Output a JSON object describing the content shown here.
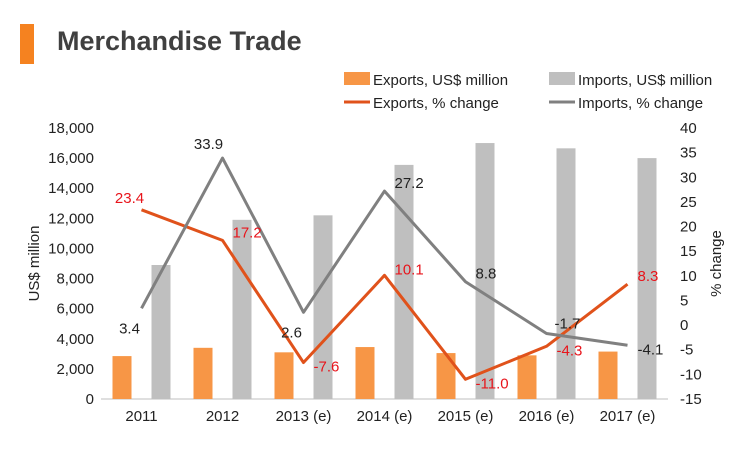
{
  "header": {
    "title": "Merchandise Trade",
    "accent_color": "#F58220"
  },
  "chart_data": {
    "type": "bar",
    "categories": [
      "2011",
      "2012",
      "2013 (e)",
      "2014 (e)",
      "2015 (e)",
      "2016 (e)",
      "2017 (e)"
    ],
    "series": [
      {
        "name": "Exports, US$ million",
        "kind": "bar",
        "axis": "left",
        "color": "#F79646",
        "values": [
          2850,
          3400,
          3100,
          3450,
          3050,
          2900,
          3150
        ]
      },
      {
        "name": "Imports, US$ million",
        "kind": "bar",
        "axis": "left",
        "color": "#BFBFBF",
        "values": [
          8900,
          11900,
          12200,
          15550,
          17000,
          16650,
          16000
        ]
      },
      {
        "name": "Exports, % change",
        "kind": "line",
        "axis": "right",
        "color": "#E0521B",
        "values": [
          23.4,
          17.2,
          -7.6,
          10.1,
          -11.0,
          -4.3,
          8.3
        ],
        "labels": [
          "23.4",
          "17.2",
          "-7.6",
          "10.1",
          "-11.0",
          "-4.3",
          "8.3"
        ],
        "label_color": "#E8141B"
      },
      {
        "name": "Imports, % change",
        "kind": "line",
        "axis": "right",
        "color": "#808080",
        "values": [
          3.4,
          33.9,
          2.6,
          27.2,
          8.8,
          -1.7,
          -4.1
        ],
        "labels": [
          "3.4",
          "33.9",
          "2.6",
          "27.2",
          "8.8",
          "-1.7",
          "-4.1"
        ],
        "label_color": "#222222"
      }
    ],
    "ylabel": "US$ million",
    "y2label": "% change",
    "ylim": [
      0,
      18000
    ],
    "yticks": [
      "0",
      "2,000",
      "4,000",
      "6,000",
      "8,000",
      "10,000",
      "12,000",
      "14,000",
      "16,000",
      "18,000"
    ],
    "y2lim": [
      -15,
      40
    ],
    "y2ticks": [
      "-15",
      "-10",
      "-5",
      "0",
      "5",
      "10",
      "15",
      "20",
      "25",
      "30",
      "35",
      "40"
    ],
    "grid": false,
    "legend": "top-right"
  }
}
